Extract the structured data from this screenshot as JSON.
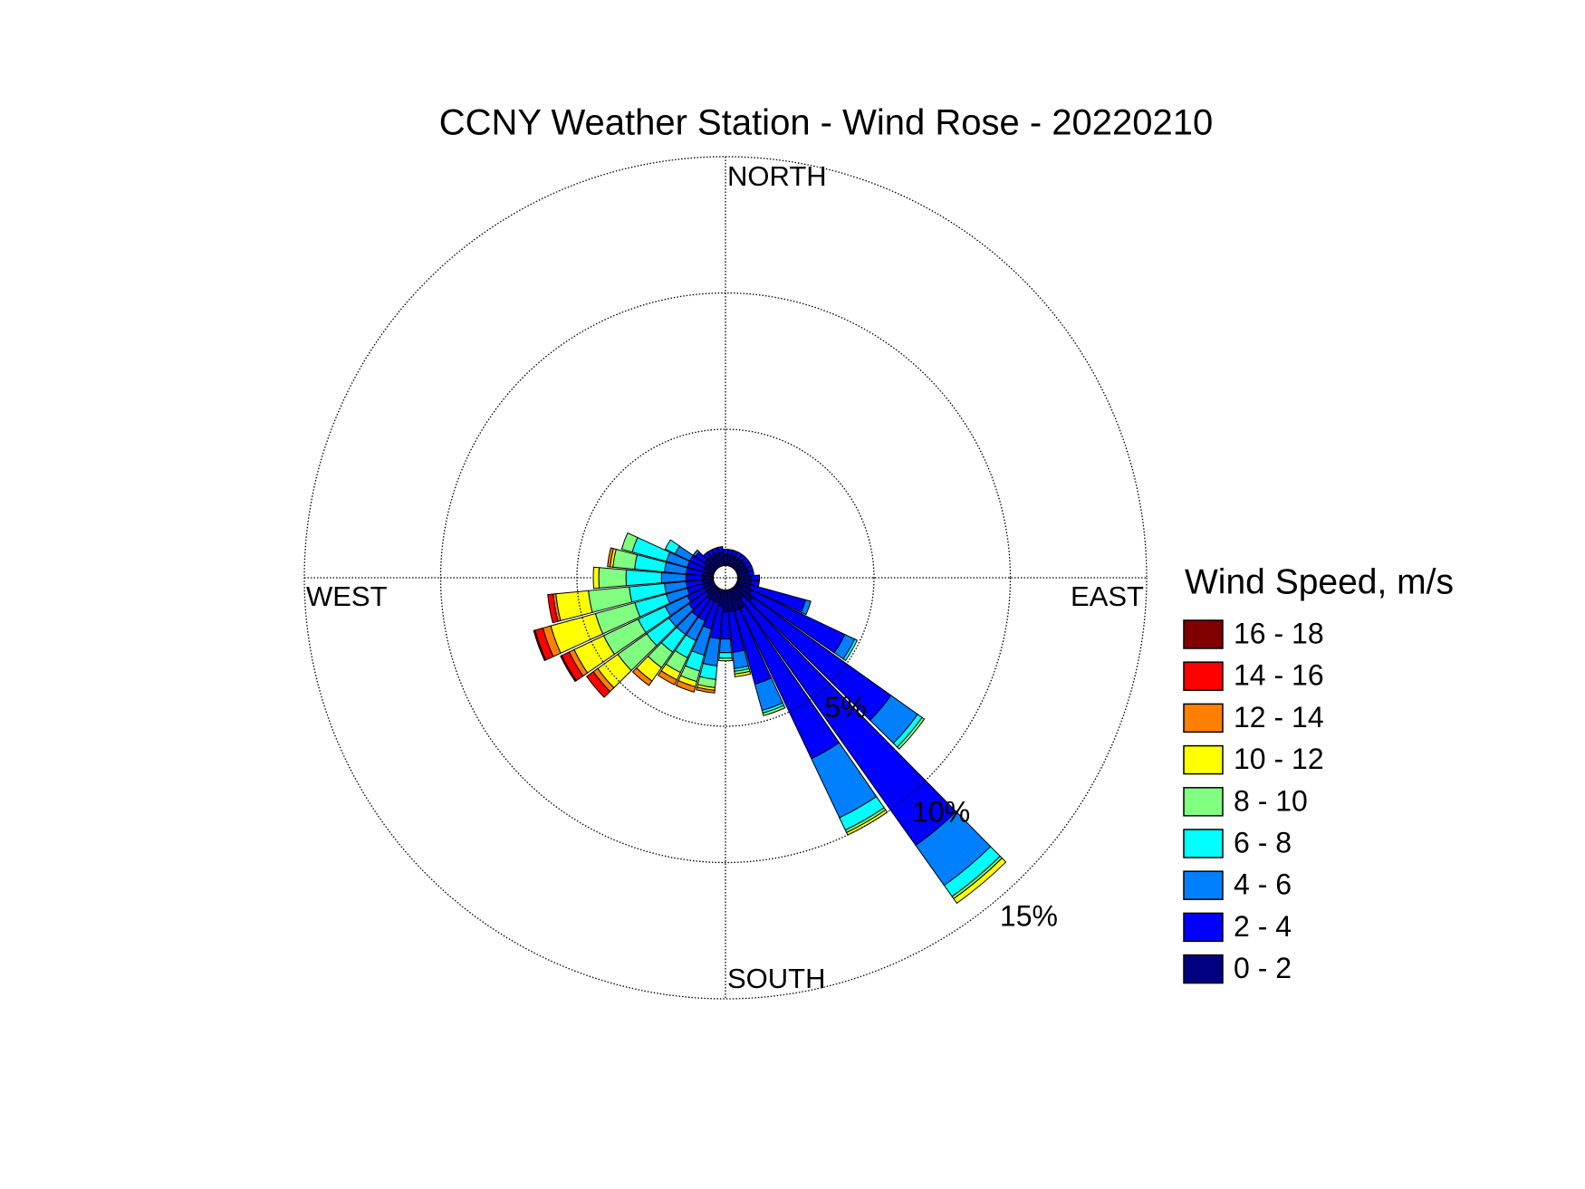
{
  "chart_data": {
    "type": "windrose",
    "title": "CCNY Weather Station - Wind Rose - 20220210",
    "legend_title": "Wind Speed, m/s",
    "direction_labels": [
      "NORTH",
      "EAST",
      "SOUTH",
      "WEST"
    ],
    "x": [
      0,
      10,
      20,
      30,
      40,
      50,
      60,
      70,
      80,
      90,
      100,
      110,
      120,
      130,
      140,
      150,
      160,
      170,
      180,
      190,
      200,
      210,
      220,
      230,
      240,
      250,
      260,
      270,
      280,
      290,
      300,
      310,
      320,
      330,
      340,
      350
    ],
    "rlim": [
      0,
      15
    ],
    "rticks": [
      {
        "value": 5,
        "label": "5%"
      },
      {
        "value": 10,
        "label": "10%"
      },
      {
        "value": 15,
        "label": "15%"
      }
    ],
    "grid": true,
    "series": [
      {
        "name": "0 - 2",
        "color": "#000080",
        "values": [
          0.4,
          0.4,
          0.4,
          0.4,
          0.4,
          0.4,
          0.4,
          0.4,
          0.4,
          0.5,
          0.5,
          0.5,
          0.6,
          0.8,
          0.5,
          0.8,
          0.8,
          0.8,
          0.8,
          0.6,
          0.5,
          0.5,
          0.5,
          0.4,
          0.4,
          0.4,
          0.4,
          0.4,
          0.4,
          0.4,
          0.4,
          0.5,
          0.5,
          0.5,
          0.5,
          0.5
        ]
      },
      {
        "name": "2 - 4",
        "color": "#0000ff",
        "values": [
          0.2,
          0.2,
          0.2,
          0.2,
          0.2,
          0.2,
          0.2,
          0.2,
          0.2,
          0.3,
          0.3,
          2.1,
          3.8,
          6.2,
          11.1,
          6.1,
          2.8,
          1.5,
          1.0,
          1.2,
          1.0,
          0.8,
          0.8,
          0.8,
          0.7,
          0.6,
          0.6,
          0.6,
          0.6,
          0.6,
          0.6,
          0.4,
          0.2,
          0.2,
          0.2,
          0.2
        ]
      },
      {
        "name": "4 - 6",
        "color": "#0080ff",
        "values": [
          0,
          0,
          0,
          0,
          0,
          0,
          0,
          0,
          0,
          0,
          0,
          0.2,
          0.4,
          1.2,
          1.8,
          2.4,
          1.0,
          0.6,
          0.5,
          1.0,
          1.0,
          0.8,
          0.8,
          0.9,
          0.9,
          0.8,
          0.8,
          0.9,
          0.8,
          0.8,
          0.6,
          0.1,
          0,
          0,
          0,
          0
        ]
      },
      {
        "name": "6 - 8",
        "color": "#00ffff",
        "values": [
          0,
          0,
          0,
          0,
          0,
          0,
          0,
          0,
          0,
          0,
          0,
          0,
          0.1,
          0.2,
          0.5,
          0.5,
          0.1,
          0.1,
          0.2,
          0.5,
          0.6,
          0.7,
          0.8,
          1.0,
          1.1,
          1.2,
          1.3,
          1.3,
          1.1,
          1.3,
          0.4,
          0,
          0,
          0,
          0,
          0
        ]
      },
      {
        "name": "8 - 10",
        "color": "#80ff80",
        "values": [
          0,
          0,
          0,
          0,
          0,
          0,
          0,
          0,
          0,
          0,
          0,
          0,
          0,
          0.1,
          0.1,
          0.1,
          0.1,
          0.1,
          0.1,
          0.3,
          0.4,
          0.6,
          0.7,
          1.3,
          1.4,
          1.5,
          1.5,
          1.0,
          0.8,
          0.4,
          0,
          0,
          0,
          0,
          0,
          0
        ]
      },
      {
        "name": "10 - 12",
        "color": "#ffff00",
        "values": [
          0,
          0,
          0,
          0,
          0,
          0,
          0,
          0,
          0,
          0,
          0,
          0,
          0,
          0,
          0.2,
          0.1,
          0,
          0.1,
          0,
          0.1,
          0.2,
          0.3,
          0.6,
          0.9,
          1.2,
          1.7,
          1.2,
          0.2,
          0.1,
          0,
          0,
          0,
          0,
          0,
          0,
          0
        ]
      },
      {
        "name": "12 - 14",
        "color": "#ff8000",
        "values": [
          0,
          0,
          0,
          0,
          0,
          0,
          0,
          0,
          0,
          0,
          0,
          0,
          0,
          0,
          0,
          0,
          0,
          0,
          0,
          0.1,
          0.2,
          0.2,
          0.2,
          0.2,
          0.2,
          0.3,
          0.1,
          0,
          0.1,
          0,
          0,
          0,
          0,
          0,
          0,
          0
        ]
      },
      {
        "name": "14 - 16",
        "color": "#ff0000",
        "values": [
          0,
          0,
          0,
          0,
          0,
          0,
          0,
          0,
          0,
          0,
          0,
          0,
          0,
          0,
          0,
          0,
          0,
          0,
          0,
          0,
          0,
          0,
          0,
          0.3,
          0.3,
          0.3,
          0.2,
          0,
          0,
          0,
          0,
          0,
          0,
          0,
          0,
          0
        ]
      },
      {
        "name": "16 - 18",
        "color": "#800000",
        "values": [
          0,
          0,
          0,
          0,
          0,
          0,
          0,
          0,
          0,
          0,
          0,
          0,
          0,
          0,
          0,
          0,
          0,
          0,
          0,
          0,
          0,
          0,
          0,
          0,
          0.05,
          0.05,
          0,
          0,
          0,
          0,
          0,
          0,
          0,
          0,
          0,
          0
        ]
      }
    ]
  }
}
